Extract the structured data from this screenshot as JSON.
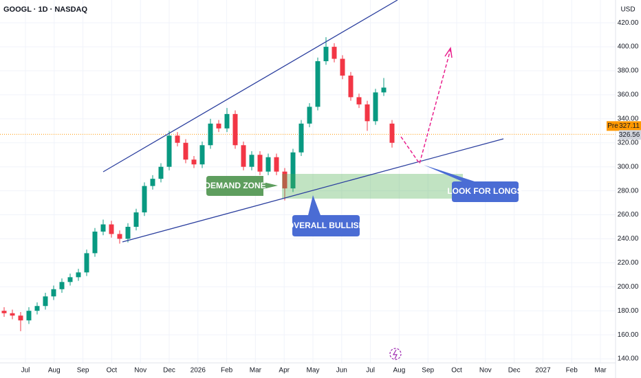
{
  "chart_data": {
    "type": "candlestick",
    "title": "GOOGL · 1D · NASDAQ",
    "currency": "USD",
    "categories": [
      "Jul",
      "Aug",
      "Sep",
      "Oct",
      "Nov",
      "Dec",
      "2026",
      "Feb",
      "Mar",
      "Apr",
      "May",
      "Jun",
      "Jul",
      "Aug",
      "Sep",
      "Oct",
      "Nov",
      "Dec",
      "2027",
      "Feb",
      "Mar"
    ],
    "ylim": [
      124,
      439
    ],
    "yticks": [
      {
        "value": 140,
        "label": "140.00"
      },
      {
        "value": 160,
        "label": "160.00"
      },
      {
        "value": 180,
        "label": "180.00"
      },
      {
        "value": 200,
        "label": "200.00"
      },
      {
        "value": 220,
        "label": "220.00"
      },
      {
        "value": 240,
        "label": "240.00"
      },
      {
        "value": 260,
        "label": "260.00"
      },
      {
        "value": 280,
        "label": "280.00"
      },
      {
        "value": 300,
        "label": "300.00"
      },
      {
        "value": 320,
        "label": "320.00"
      },
      {
        "value": 340,
        "label": "340.00"
      },
      {
        "value": 360,
        "label": "360.00"
      },
      {
        "value": 380,
        "label": "380.00"
      },
      {
        "value": 400,
        "label": "400.00"
      },
      {
        "value": 420,
        "label": "420.00"
      }
    ],
    "grid": true,
    "up_color": "#089981",
    "down_color": "#f23645",
    "open": [
      180,
      178,
      176,
      172,
      180,
      184,
      192,
      198,
      204,
      208,
      212,
      228,
      246,
      252,
      244,
      240,
      250,
      262,
      284,
      290,
      300,
      326,
      320,
      306,
      302,
      318,
      336,
      332,
      344,
      318,
      300,
      310,
      296,
      308,
      296,
      282,
      312,
      336,
      350,
      388,
      400,
      390,
      376,
      358,
      352,
      338,
      362,
      336
    ],
    "high": [
      183,
      181,
      179,
      183,
      187,
      195,
      201,
      207,
      211,
      215,
      231,
      249,
      256,
      255,
      247,
      253,
      265,
      287,
      293,
      303,
      330,
      329,
      323,
      309,
      321,
      340,
      339,
      349,
      347,
      321,
      313,
      313,
      311,
      311,
      299,
      315,
      339,
      353,
      391,
      408,
      403,
      393,
      379,
      361,
      355,
      365,
      374,
      339
    ],
    "low": [
      175,
      173,
      163,
      169,
      177,
      181,
      189,
      195,
      201,
      205,
      209,
      225,
      243,
      241,
      236,
      237,
      247,
      259,
      281,
      287,
      297,
      317,
      303,
      299,
      299,
      315,
      329,
      329,
      315,
      297,
      297,
      293,
      293,
      293,
      272,
      279,
      309,
      333,
      347,
      385,
      387,
      373,
      355,
      349,
      330,
      335,
      359,
      316
    ],
    "close": [
      178,
      176,
      172,
      180,
      184,
      192,
      198,
      204,
      208,
      212,
      228,
      246,
      252,
      244,
      240,
      250,
      262,
      284,
      290,
      300,
      326,
      320,
      306,
      302,
      318,
      336,
      332,
      344,
      318,
      300,
      310,
      296,
      308,
      296,
      282,
      312,
      336,
      350,
      388,
      400,
      390,
      376,
      358,
      352,
      338,
      362,
      366,
      320
    ],
    "price_tags": [
      {
        "label": "Pre",
        "value": 327.11,
        "color": "#ff9800"
      },
      {
        "value": 326.56,
        "color": "#d1d4dc"
      }
    ],
    "annotations": [
      "DEMAND ZONE",
      "OVERALL BULLISH",
      "LOOK FOR LONGS"
    ]
  }
}
